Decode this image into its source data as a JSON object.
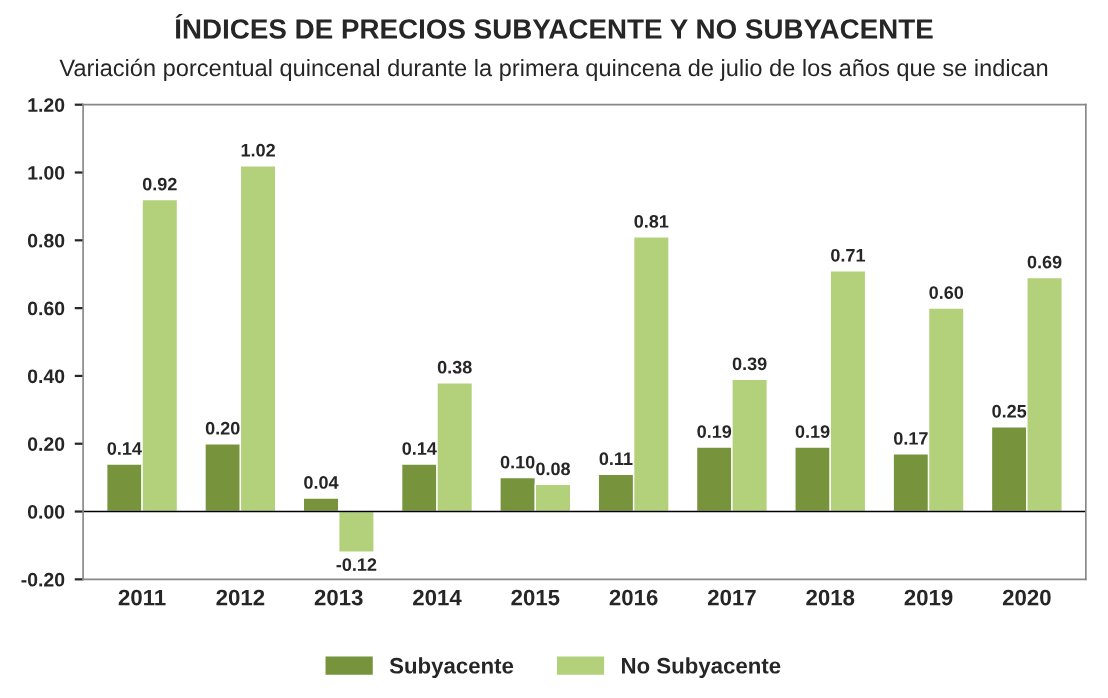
{
  "chart_data": {
    "type": "bar",
    "title": "ÍNDICES DE PRECIOS SUBYACENTE Y NO SUBYACENTE",
    "subtitle": "Variación porcentual quincenal durante la primera quincena de julio de los años que se indican",
    "categories": [
      "2011",
      "2012",
      "2013",
      "2014",
      "2015",
      "2016",
      "2017",
      "2018",
      "2019",
      "2020"
    ],
    "series": [
      {
        "name": "Subyacente",
        "color": "#77933c",
        "values": [
          0.14,
          0.2,
          0.04,
          0.14,
          0.1,
          0.11,
          0.19,
          0.19,
          0.17,
          0.25
        ],
        "value_labels": [
          "0.14",
          "0.20",
          "0.04",
          "0.14",
          "0.10",
          "0.11",
          "0.19",
          "0.19",
          "0.17",
          "0.25"
        ]
      },
      {
        "name": "No Subyacente",
        "color": "#b3d07a",
        "values": [
          0.92,
          1.02,
          -0.12,
          0.38,
          0.08,
          0.81,
          0.39,
          0.71,
          0.6,
          0.69
        ],
        "value_labels": [
          "0.92",
          "1.02",
          "-0.12",
          "0.38",
          "0.08",
          "0.81",
          "0.39",
          "0.71",
          "0.60",
          "0.69"
        ]
      }
    ],
    "ylim": [
      -0.2,
      1.2
    ],
    "yticks": [
      {
        "value": -0.2,
        "label": "-0.20"
      },
      {
        "value": 0,
        "label": "0.00"
      },
      {
        "value": 0.2,
        "label": "0.20"
      },
      {
        "value": 0.4,
        "label": "0.40"
      },
      {
        "value": 0.6,
        "label": "0.60"
      },
      {
        "value": 0.8,
        "label": "0.80"
      },
      {
        "value": 1.0,
        "label": "1.00"
      },
      {
        "value": 1.2,
        "label": "1.20"
      }
    ],
    "legend": "bottom"
  }
}
